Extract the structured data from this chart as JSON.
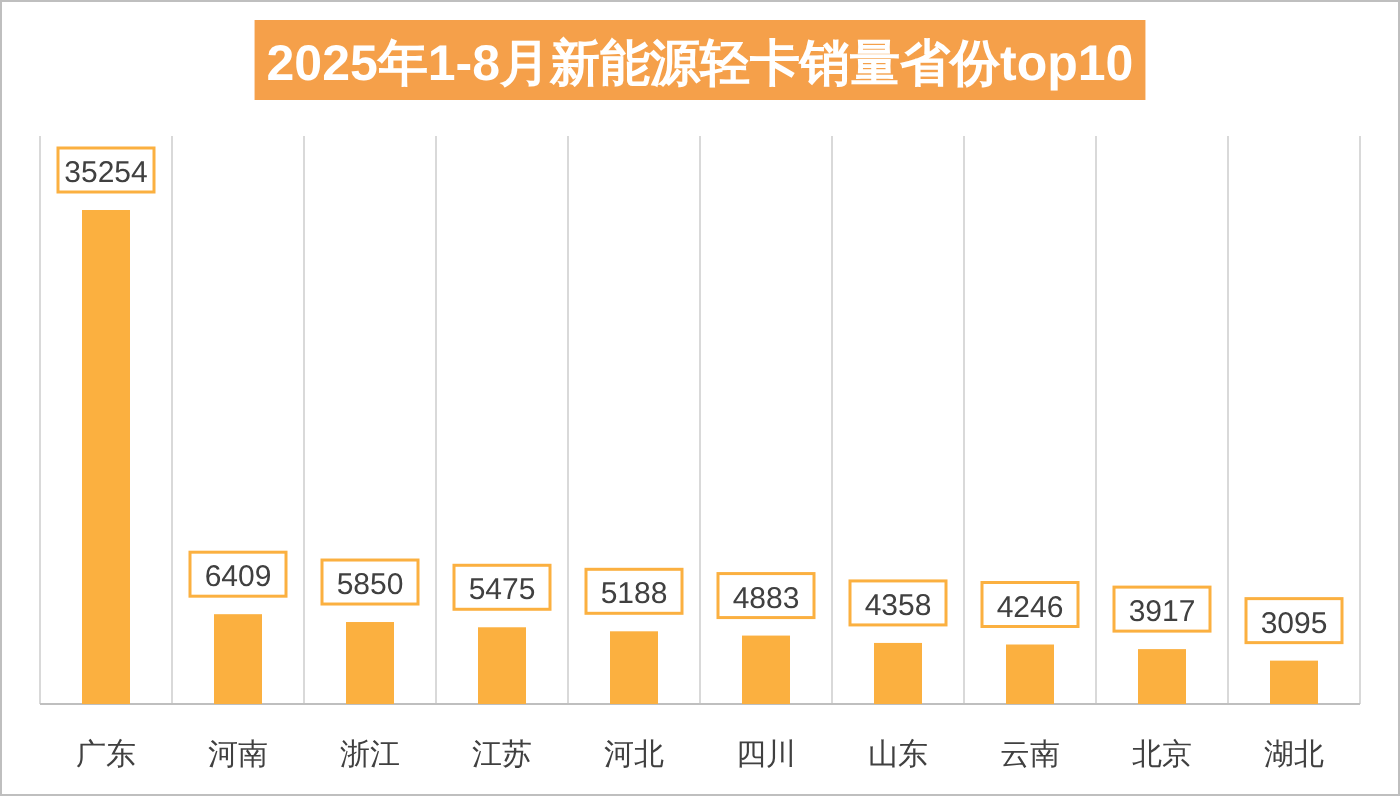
{
  "chart_data": {
    "type": "bar",
    "title": "2025年1-8月新能源轻卡销量省份top10",
    "categories": [
      "广东",
      "河南",
      "浙江",
      "江苏",
      "河北",
      "四川",
      "山东",
      "云南",
      "北京",
      "湖北"
    ],
    "values": [
      35254,
      6409,
      5850,
      5475,
      5188,
      4883,
      4358,
      4246,
      3917,
      3095
    ],
    "color": "#fbb040",
    "data_labels": true,
    "grid": "x"
  }
}
